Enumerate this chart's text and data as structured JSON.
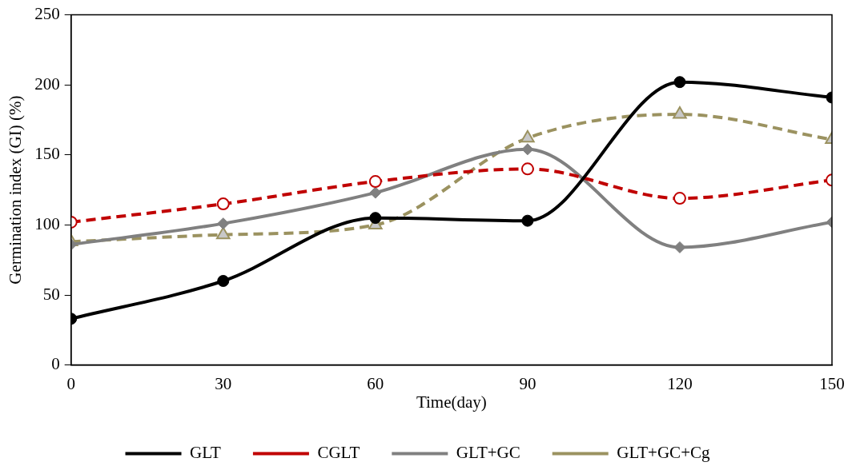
{
  "chart_data": {
    "type": "line",
    "xlabel": "Time(day)",
    "ylabel": "Germination index (GI) (%)",
    "x": [
      0,
      30,
      60,
      90,
      120,
      150
    ],
    "xlim": [
      0,
      150
    ],
    "xticks": [
      0,
      30,
      60,
      90,
      120,
      150
    ],
    "ylim": [
      0,
      250
    ],
    "yticks": [
      0,
      50,
      100,
      150,
      200,
      250
    ],
    "grid": false,
    "legend": "bottom",
    "series": [
      {
        "name": "GLT",
        "color": "#000000",
        "marker": "circle",
        "line_style": "solid",
        "values": [
          33,
          60,
          105,
          103,
          202,
          191
        ]
      },
      {
        "name": "CGLT",
        "color": "#c00000",
        "marker": "circle",
        "line_style": "dashed",
        "values": [
          102,
          115,
          131,
          140,
          119,
          132
        ]
      },
      {
        "name": "GLT+GC",
        "color": "#808080",
        "marker": "diamond",
        "line_style": "solid",
        "values": [
          86,
          101,
          123,
          154,
          84,
          102
        ]
      },
      {
        "name": "GLT+GC+Cg",
        "color": "#9b9260",
        "marker": "triangle",
        "line_style": "dashed",
        "values": [
          88,
          93,
          100,
          162,
          179,
          161
        ]
      }
    ]
  }
}
